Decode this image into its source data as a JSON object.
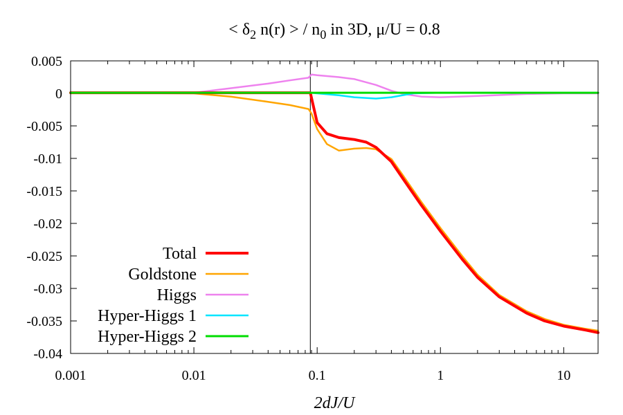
{
  "chart_data": {
    "type": "line",
    "title": {
      "prefix": "< ",
      "delta": "δ",
      "delta_sub": "2",
      "middle": " n(r) > / n",
      "n_sub": "0",
      "suffix": " in 3D, μ/U = 0.8"
    },
    "xlabel": "2dJ/U",
    "ylabel": "",
    "xscale": "log",
    "xlim": [
      0.001,
      19
    ],
    "ylim": [
      -0.04,
      0.005
    ],
    "x_ticks": [
      {
        "value": 0.001,
        "label": "0.001"
      },
      {
        "value": 0.01,
        "label": "0.01"
      },
      {
        "value": 0.1,
        "label": "0.1"
      },
      {
        "value": 1,
        "label": "1"
      },
      {
        "value": 10,
        "label": "10"
      }
    ],
    "y_ticks": [
      {
        "value": 0.005,
        "label": "0.005"
      },
      {
        "value": 0,
        "label": "0"
      },
      {
        "value": -0.005,
        "label": "-0.005"
      },
      {
        "value": -0.01,
        "label": "-0.01"
      },
      {
        "value": -0.015,
        "label": "-0.015"
      },
      {
        "value": -0.02,
        "label": "-0.02"
      },
      {
        "value": -0.025,
        "label": "-0.025"
      },
      {
        "value": -0.03,
        "label": "-0.03"
      },
      {
        "value": -0.035,
        "label": "-0.035"
      },
      {
        "value": -0.04,
        "label": "-0.04"
      }
    ],
    "vertical_line_x": 0.088,
    "legend_position": "bottom-left",
    "series": [
      {
        "name": "Total",
        "color": "#ff0000",
        "width": 4,
        "points": [
          [
            0.001,
            0.0001
          ],
          [
            0.01,
            0.0001
          ],
          [
            0.088,
            0.0001
          ],
          [
            0.092,
            -0.0015
          ],
          [
            0.1,
            -0.0045
          ],
          [
            0.12,
            -0.0062
          ],
          [
            0.15,
            -0.0068
          ],
          [
            0.2,
            -0.0071
          ],
          [
            0.25,
            -0.0075
          ],
          [
            0.3,
            -0.0083
          ],
          [
            0.4,
            -0.0105
          ],
          [
            0.5,
            -0.0132
          ],
          [
            0.7,
            -0.0172
          ],
          [
            1.0,
            -0.0212
          ],
          [
            1.5,
            -0.0255
          ],
          [
            2,
            -0.0283
          ],
          [
            3,
            -0.0313
          ],
          [
            5,
            -0.0338
          ],
          [
            7,
            -0.035
          ],
          [
            10,
            -0.0358
          ],
          [
            15,
            -0.0364
          ],
          [
            19,
            -0.0368
          ]
        ]
      },
      {
        "name": "Goldstone",
        "color": "#ffa500",
        "width": 2.5,
        "points": [
          [
            0.001,
            0.0001
          ],
          [
            0.01,
            0.0
          ],
          [
            0.02,
            -0.0005
          ],
          [
            0.04,
            -0.0013
          ],
          [
            0.06,
            -0.0018
          ],
          [
            0.085,
            -0.0024
          ],
          [
            0.09,
            -0.0031
          ],
          [
            0.1,
            -0.0055
          ],
          [
            0.12,
            -0.0078
          ],
          [
            0.15,
            -0.0088
          ],
          [
            0.2,
            -0.0085
          ],
          [
            0.25,
            -0.0084
          ],
          [
            0.3,
            -0.0086
          ],
          [
            0.4,
            -0.0101
          ],
          [
            0.5,
            -0.0127
          ],
          [
            0.7,
            -0.0167
          ],
          [
            1.0,
            -0.0207
          ],
          [
            1.5,
            -0.025
          ],
          [
            2,
            -0.0279
          ],
          [
            3,
            -0.031
          ],
          [
            5,
            -0.0335
          ],
          [
            7,
            -0.0347
          ],
          [
            10,
            -0.0356
          ],
          [
            15,
            -0.0362
          ],
          [
            19,
            -0.0365
          ]
        ]
      },
      {
        "name": "Higgs",
        "color": "#ee82ee",
        "width": 2.5,
        "points": [
          [
            0.001,
            0.0001
          ],
          [
            0.01,
            0.0001
          ],
          [
            0.02,
            0.0008
          ],
          [
            0.04,
            0.0015
          ],
          [
            0.06,
            0.002
          ],
          [
            0.085,
            0.0024
          ],
          [
            0.09,
            0.0029
          ],
          [
            0.1,
            0.0028
          ],
          [
            0.15,
            0.0025
          ],
          [
            0.2,
            0.0022
          ],
          [
            0.3,
            0.0013
          ],
          [
            0.4,
            0.0004
          ],
          [
            0.5,
            -0.0001
          ],
          [
            0.7,
            -0.0005
          ],
          [
            1.0,
            -0.0006
          ],
          [
            2,
            -0.0004
          ],
          [
            5,
            -0.0001
          ],
          [
            10,
            0.0
          ],
          [
            19,
            0.0
          ]
        ]
      },
      {
        "name": "Hyper-Higgs 1",
        "color": "#00e5ff",
        "width": 2.5,
        "points": [
          [
            0.001,
            0.0001
          ],
          [
            0.088,
            0.0001
          ],
          [
            0.1,
            0.0
          ],
          [
            0.15,
            -0.0003
          ],
          [
            0.2,
            -0.0006
          ],
          [
            0.3,
            -0.0008
          ],
          [
            0.4,
            -0.0006
          ],
          [
            0.6,
            0.0
          ],
          [
            1.0,
            0.0001
          ],
          [
            19,
            0.0001
          ]
        ]
      },
      {
        "name": "Hyper-Higgs 2",
        "color": "#00dd00",
        "width": 3,
        "points": [
          [
            0.001,
            0.0001
          ],
          [
            0.1,
            0.0001
          ],
          [
            0.5,
            0.0001
          ],
          [
            1.0,
            0.0001
          ],
          [
            19,
            0.0001
          ]
        ]
      }
    ]
  }
}
